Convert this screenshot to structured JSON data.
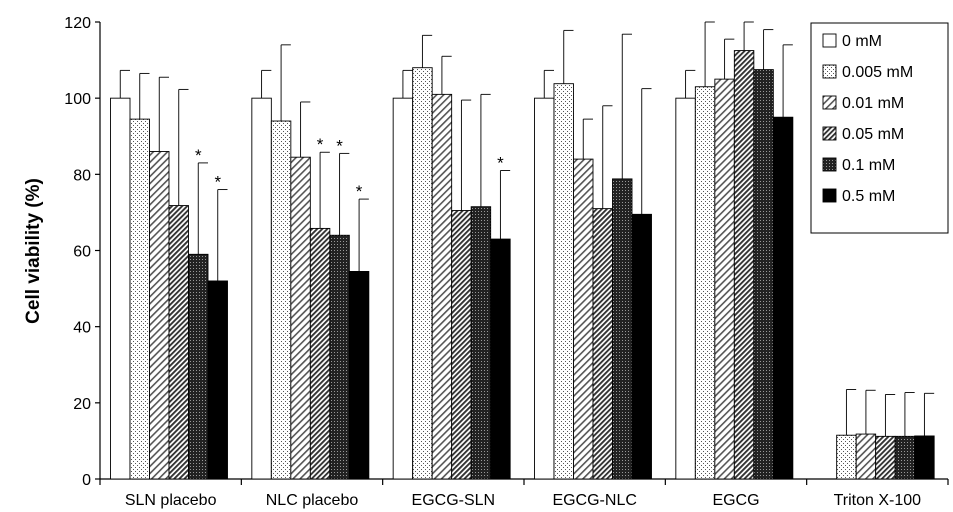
{
  "chart_data": {
    "type": "bar",
    "title": "",
    "xlabel": "",
    "ylabel": "Cell viability (%)",
    "ylim": [
      0,
      120
    ],
    "yticks": [
      0,
      20,
      40,
      60,
      80,
      100,
      120
    ],
    "grid": false,
    "legend_position": "top-right",
    "categories": [
      "SLN placebo",
      "NLC placebo",
      "EGCG-SLN",
      "EGCG-NLC",
      "EGCG",
      "Triton X-100"
    ],
    "series": [
      {
        "name": "0 mM",
        "pattern": "white",
        "values": [
          100,
          100,
          100,
          100,
          100,
          null
        ],
        "errors": [
          7.3,
          7.3,
          7.3,
          7.3,
          7.3,
          null
        ],
        "significant": [
          false,
          false,
          false,
          false,
          false,
          false
        ]
      },
      {
        "name": "0.005 mM",
        "pattern": "dots",
        "values": [
          94.5,
          94,
          108,
          103.8,
          103,
          11.5
        ],
        "errors": [
          12,
          20,
          8.5,
          14,
          17,
          12
        ],
        "significant": [
          false,
          false,
          false,
          false,
          false,
          false
        ]
      },
      {
        "name": "0.01 mM",
        "pattern": "diagonal-light",
        "values": [
          86,
          84.5,
          101,
          84,
          105,
          11.8
        ],
        "errors": [
          19.5,
          14.5,
          10,
          10.5,
          10.5,
          11.5
        ],
        "significant": [
          false,
          false,
          false,
          false,
          false,
          false
        ]
      },
      {
        "name": "0.05 mM",
        "pattern": "diagonal-dense",
        "values": [
          71.8,
          65.8,
          70.5,
          71,
          112.5,
          11.2
        ],
        "errors": [
          30.5,
          20,
          29,
          27,
          7.5,
          11
        ],
        "significant": [
          false,
          true,
          false,
          false,
          false,
          false
        ]
      },
      {
        "name": "0.1 mM",
        "pattern": "dark-checker",
        "values": [
          59,
          64,
          71.5,
          78.8,
          107.5,
          11.2
        ],
        "errors": [
          24,
          21.5,
          29.5,
          38,
          10.5,
          11.5
        ],
        "significant": [
          true,
          true,
          false,
          false,
          false,
          false
        ]
      },
      {
        "name": "0.5 mM",
        "pattern": "black",
        "values": [
          52,
          54.5,
          63,
          69.5,
          95,
          11.3
        ],
        "errors": [
          24,
          19,
          18,
          33,
          19,
          11.2
        ],
        "significant": [
          true,
          true,
          true,
          false,
          false,
          false
        ]
      }
    ],
    "significance_marker": "*"
  }
}
